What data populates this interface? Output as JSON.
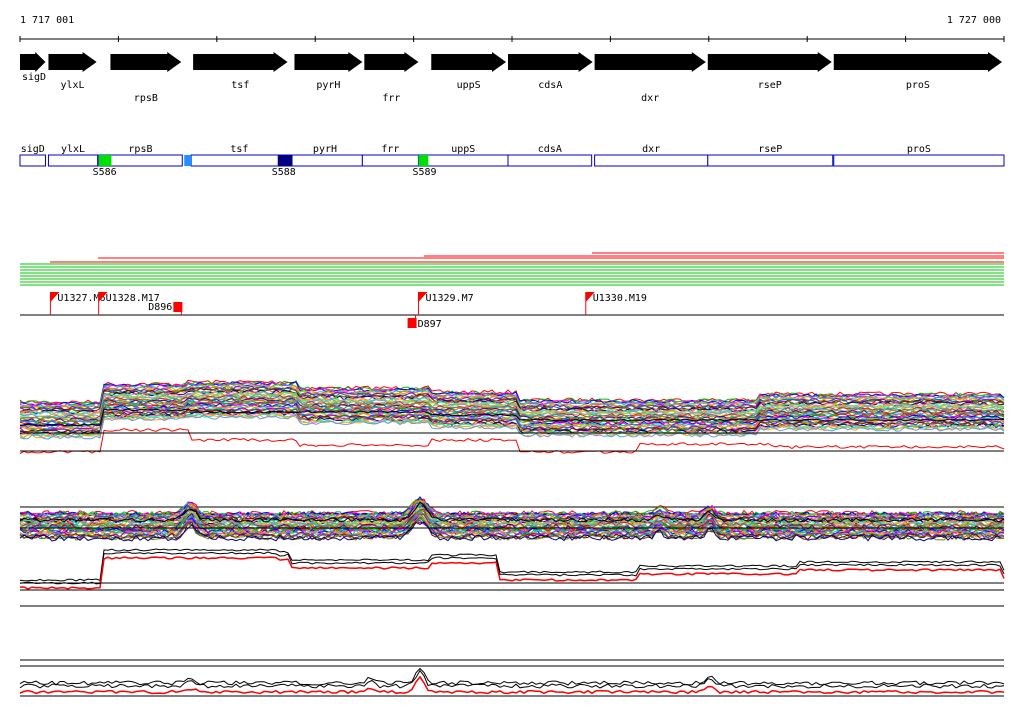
{
  "coordinates": {
    "start": "1 717 001",
    "end": "1 727 000",
    "start_bp": 1717001,
    "end_bp": 1727000
  },
  "genes": [
    {
      "name": "sigD",
      "start": 1717001,
      "end": 1717280,
      "strand": "+"
    },
    {
      "name": "ylxL",
      "start": 1717290,
      "end": 1717800,
      "strand": "+"
    },
    {
      "name": "rpsB",
      "start": 1717920,
      "end": 1718660,
      "strand": "+"
    },
    {
      "name": "tsf",
      "start": 1718760,
      "end": 1719740,
      "strand": "+"
    },
    {
      "name": "pyrH",
      "start": 1719790,
      "end": 1720500,
      "strand": "+"
    },
    {
      "name": "frr",
      "start": 1720500,
      "end": 1721070,
      "strand": "+"
    },
    {
      "name": "uppS",
      "start": 1721180,
      "end": 1721960,
      "strand": "+"
    },
    {
      "name": "cdsA",
      "start": 1721960,
      "end": 1722840,
      "strand": "+"
    },
    {
      "name": "dxr",
      "start": 1722840,
      "end": 1723990,
      "strand": "+"
    },
    {
      "name": "rseP",
      "start": 1723990,
      "end": 1725270,
      "strand": "+"
    },
    {
      "name": "proS",
      "start": 1725270,
      "end": 1727000,
      "strand": "+"
    }
  ],
  "gene_boxes": [
    {
      "name": "sigD",
      "start": 1717001,
      "end": 1717260
    },
    {
      "name": "ylxL",
      "start": 1717290,
      "end": 1717790
    },
    {
      "name": "rpsB",
      "start": 1717800,
      "end": 1718650
    },
    {
      "name": "tsf",
      "start": 1718740,
      "end": 1719720
    },
    {
      "name": "pyrH",
      "start": 1719720,
      "end": 1720480
    },
    {
      "name": "frr",
      "start": 1720480,
      "end": 1721050
    },
    {
      "name": "uppS",
      "start": 1721050,
      "end": 1721960
    },
    {
      "name": "cdsA",
      "start": 1721960,
      "end": 1722810
    },
    {
      "name": "dxr",
      "start": 1722840,
      "end": 1723990
    },
    {
      "name": "rseP",
      "start": 1723990,
      "end": 1725260
    },
    {
      "name": "proS",
      "start": 1725270,
      "end": 1727000
    }
  ],
  "sites": [
    {
      "name": "S586",
      "start": 1717800,
      "end": 1717930,
      "color": "#00e000",
      "label": "S586"
    },
    {
      "name": "unlabeled-site",
      "start": 1718670,
      "end": 1718740,
      "color": "#1e90ff",
      "label": ""
    },
    {
      "name": "S588",
      "start": 1719620,
      "end": 1719770,
      "color": "#000080",
      "label": "S588"
    },
    {
      "name": "S589",
      "start": 1721050,
      "end": 1721150,
      "color": "#00e000",
      "label": "S589"
    }
  ],
  "upshifts": [
    {
      "label": "U1327.M6",
      "pos": 1717310
    },
    {
      "label": "U1328.M17",
      "pos": 1717800
    },
    {
      "label": "U1329.M7",
      "pos": 1721050
    },
    {
      "label": "U1330.M19",
      "pos": 1722750
    }
  ],
  "downshifts": [
    {
      "label": "D896",
      "pos": 1718600,
      "side": "above"
    },
    {
      "label": "D897",
      "pos": 1720980,
      "side": "below"
    }
  ],
  "colors": {
    "accent_red": "#ff0000",
    "track_green": "#00c800",
    "box_blue": "#0000c8",
    "black": "#000000"
  }
}
